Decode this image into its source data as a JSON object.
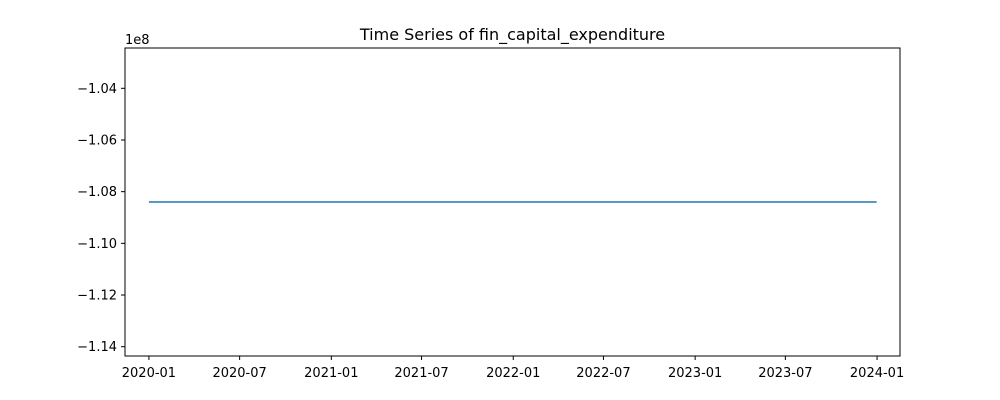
{
  "chart_data": {
    "type": "line",
    "title": "Time Series of fin_capital_expenditure",
    "xlabel": "",
    "ylabel": "",
    "y_offset_label": "1e8",
    "y_scale_multiplier": 100000000,
    "x_ticks": [
      "2020-01",
      "2020-07",
      "2021-01",
      "2021-07",
      "2022-01",
      "2022-07",
      "2023-01",
      "2023-07",
      "2024-01"
    ],
    "y_ticks": [
      -1.04,
      -1.06,
      -1.08,
      -1.1,
      -1.12,
      -1.14
    ],
    "y_tick_labels": [
      "−1.04",
      "−1.06",
      "−1.08",
      "−1.10",
      "−1.12",
      "−1.14"
    ],
    "xlim": [
      "2019-11-14",
      "2024-02-16"
    ],
    "ylim": [
      -1.1436,
      -1.0244
    ],
    "grid": false,
    "series": [
      {
        "color": "#1f77b4",
        "points": [
          {
            "x": "2020-01-01",
            "y": -1.084
          },
          {
            "x": "2023-12-31",
            "y": -1.084
          }
        ]
      }
    ]
  }
}
